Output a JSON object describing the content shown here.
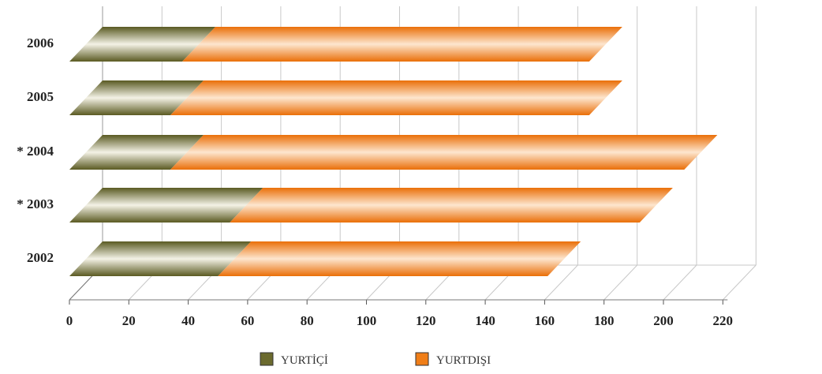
{
  "chart_data": {
    "type": "bar",
    "orientation": "horizontal",
    "stacked": true,
    "three_d": true,
    "categories": [
      "2006",
      "2005",
      "* 2004",
      "* 2003",
      "2002"
    ],
    "series": [
      {
        "name": "YURTİÇİ",
        "values": [
          38,
          34,
          34,
          54,
          50
        ],
        "color": "#6b6a2e"
      },
      {
        "name": "YURTDIŞI",
        "values": [
          137,
          141,
          173,
          138,
          111
        ],
        "color": "#f07e18"
      }
    ],
    "x_ticks": [
      0,
      20,
      40,
      60,
      80,
      100,
      120,
      140,
      160,
      180,
      200,
      220
    ],
    "xlim": [
      0,
      220
    ],
    "grid": true,
    "legend_position": "bottom"
  }
}
